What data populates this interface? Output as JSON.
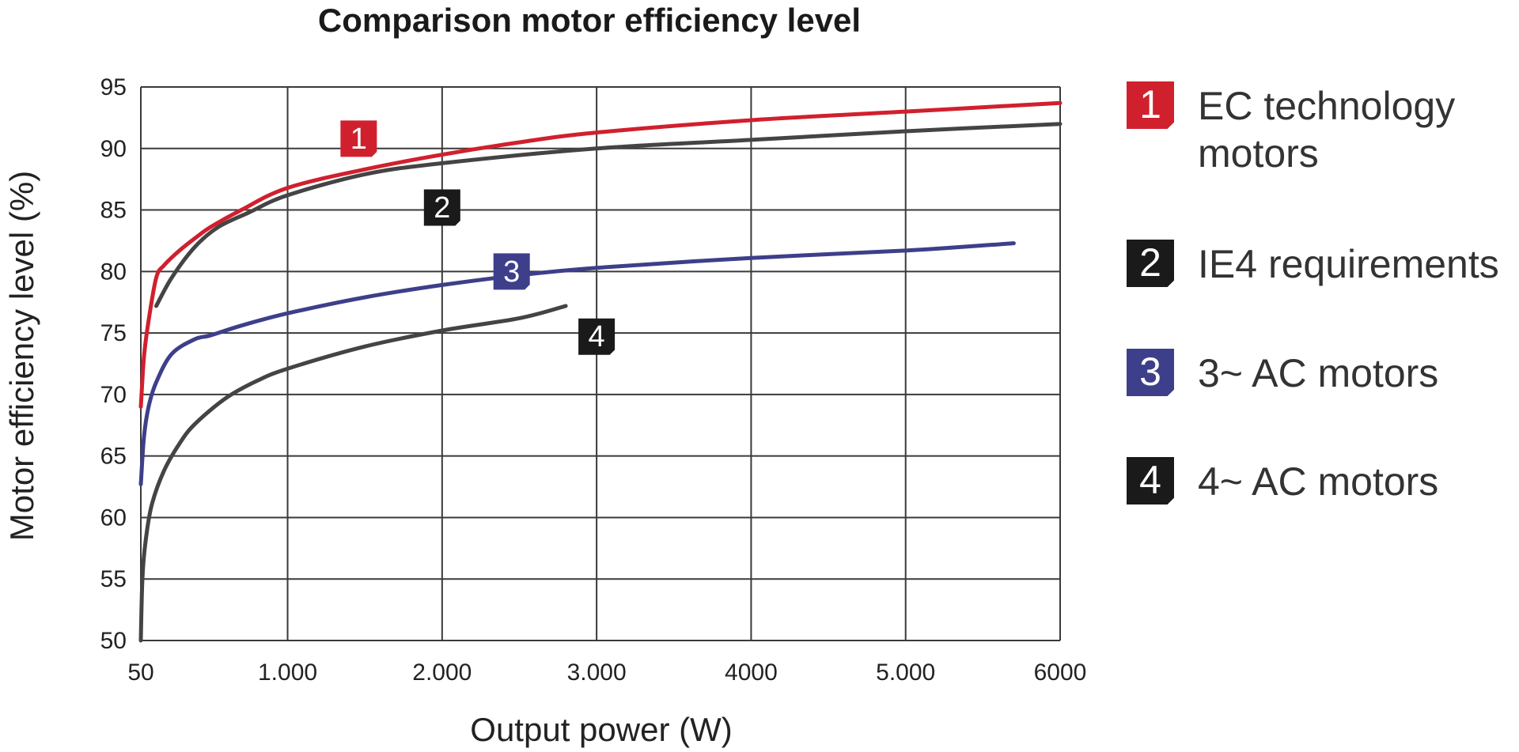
{
  "chart_data": {
    "type": "line",
    "title": "Comparison motor efficiency level",
    "xlabel": "Output power (W)",
    "ylabel": "Motor efficiency level (%)",
    "xlim": [
      50,
      6000
    ],
    "ylim": [
      50,
      95
    ],
    "x_ticks": [
      {
        "value": 50,
        "label": "50"
      },
      {
        "value": 1000,
        "label": "1.000"
      },
      {
        "value": 2000,
        "label": "2.000"
      },
      {
        "value": 3000,
        "label": "3.000"
      },
      {
        "value": 4000,
        "label": "4000"
      },
      {
        "value": 5000,
        "label": "5.000"
      },
      {
        "value": 6000,
        "label": "6000"
      }
    ],
    "y_ticks": [
      95,
      90,
      85,
      80,
      75,
      70,
      65,
      60,
      55,
      50
    ],
    "grid": true,
    "legend_position": "right",
    "series": [
      {
        "id": "1",
        "name": "EC technology motors",
        "color": "#d0202e",
        "badge_color": "#d0202e",
        "points": [
          [
            50,
            69
          ],
          [
            70,
            73
          ],
          [
            100,
            76
          ],
          [
            150,
            79.5
          ],
          [
            200,
            80.5
          ],
          [
            300,
            81.7
          ],
          [
            400,
            82.7
          ],
          [
            500,
            83.6
          ],
          [
            700,
            85
          ],
          [
            1000,
            86.8
          ],
          [
            1500,
            88.3
          ],
          [
            2000,
            89.5
          ],
          [
            2500,
            90.5
          ],
          [
            3000,
            91.3
          ],
          [
            4000,
            92.3
          ],
          [
            5000,
            93
          ],
          [
            6000,
            93.7
          ]
        ],
        "label_at": [
          1460,
          90.8
        ]
      },
      {
        "id": "2",
        "name": "IE4 requirements",
        "color": "#444444",
        "badge_color": "#1a1a1a",
        "points": [
          [
            150,
            77.2
          ],
          [
            250,
            79.5
          ],
          [
            400,
            82
          ],
          [
            550,
            83.6
          ],
          [
            750,
            84.8
          ],
          [
            1000,
            86.2
          ],
          [
            1500,
            87.9
          ],
          [
            2000,
            88.8
          ],
          [
            3000,
            90
          ],
          [
            4000,
            90.7
          ],
          [
            5000,
            91.4
          ],
          [
            6000,
            92
          ]
        ],
        "label_at": [
          2000,
          85.2
        ]
      },
      {
        "id": "3",
        "name": "3~ AC motors",
        "color": "#3e3f8a",
        "badge_color": "#3e3f8a",
        "points": [
          [
            50,
            62.7
          ],
          [
            70,
            66.5
          ],
          [
            100,
            69
          ],
          [
            150,
            71
          ],
          [
            250,
            73.3
          ],
          [
            400,
            74.5
          ],
          [
            500,
            74.8
          ],
          [
            700,
            75.6
          ],
          [
            1000,
            76.6
          ],
          [
            1500,
            77.9
          ],
          [
            2000,
            78.9
          ],
          [
            2500,
            79.7
          ],
          [
            3000,
            80.3
          ],
          [
            4000,
            81.1
          ],
          [
            5000,
            81.7
          ],
          [
            5700,
            82.3
          ]
        ],
        "label_at": [
          2450,
          80
        ]
      },
      {
        "id": "4",
        "name": "4~ AC motors",
        "color": "#444444",
        "badge_color": "#1a1a1a",
        "points": [
          [
            50,
            50
          ],
          [
            60,
            55
          ],
          [
            80,
            58
          ],
          [
            120,
            61
          ],
          [
            200,
            63.8
          ],
          [
            300,
            66
          ],
          [
            400,
            67.6
          ],
          [
            600,
            69.7
          ],
          [
            800,
            71.1
          ],
          [
            1000,
            72.1
          ],
          [
            1500,
            73.9
          ],
          [
            2000,
            75.2
          ],
          [
            2500,
            76.2
          ],
          [
            2800,
            77.2
          ]
        ],
        "label_at": [
          3000,
          74.7
        ]
      }
    ]
  }
}
